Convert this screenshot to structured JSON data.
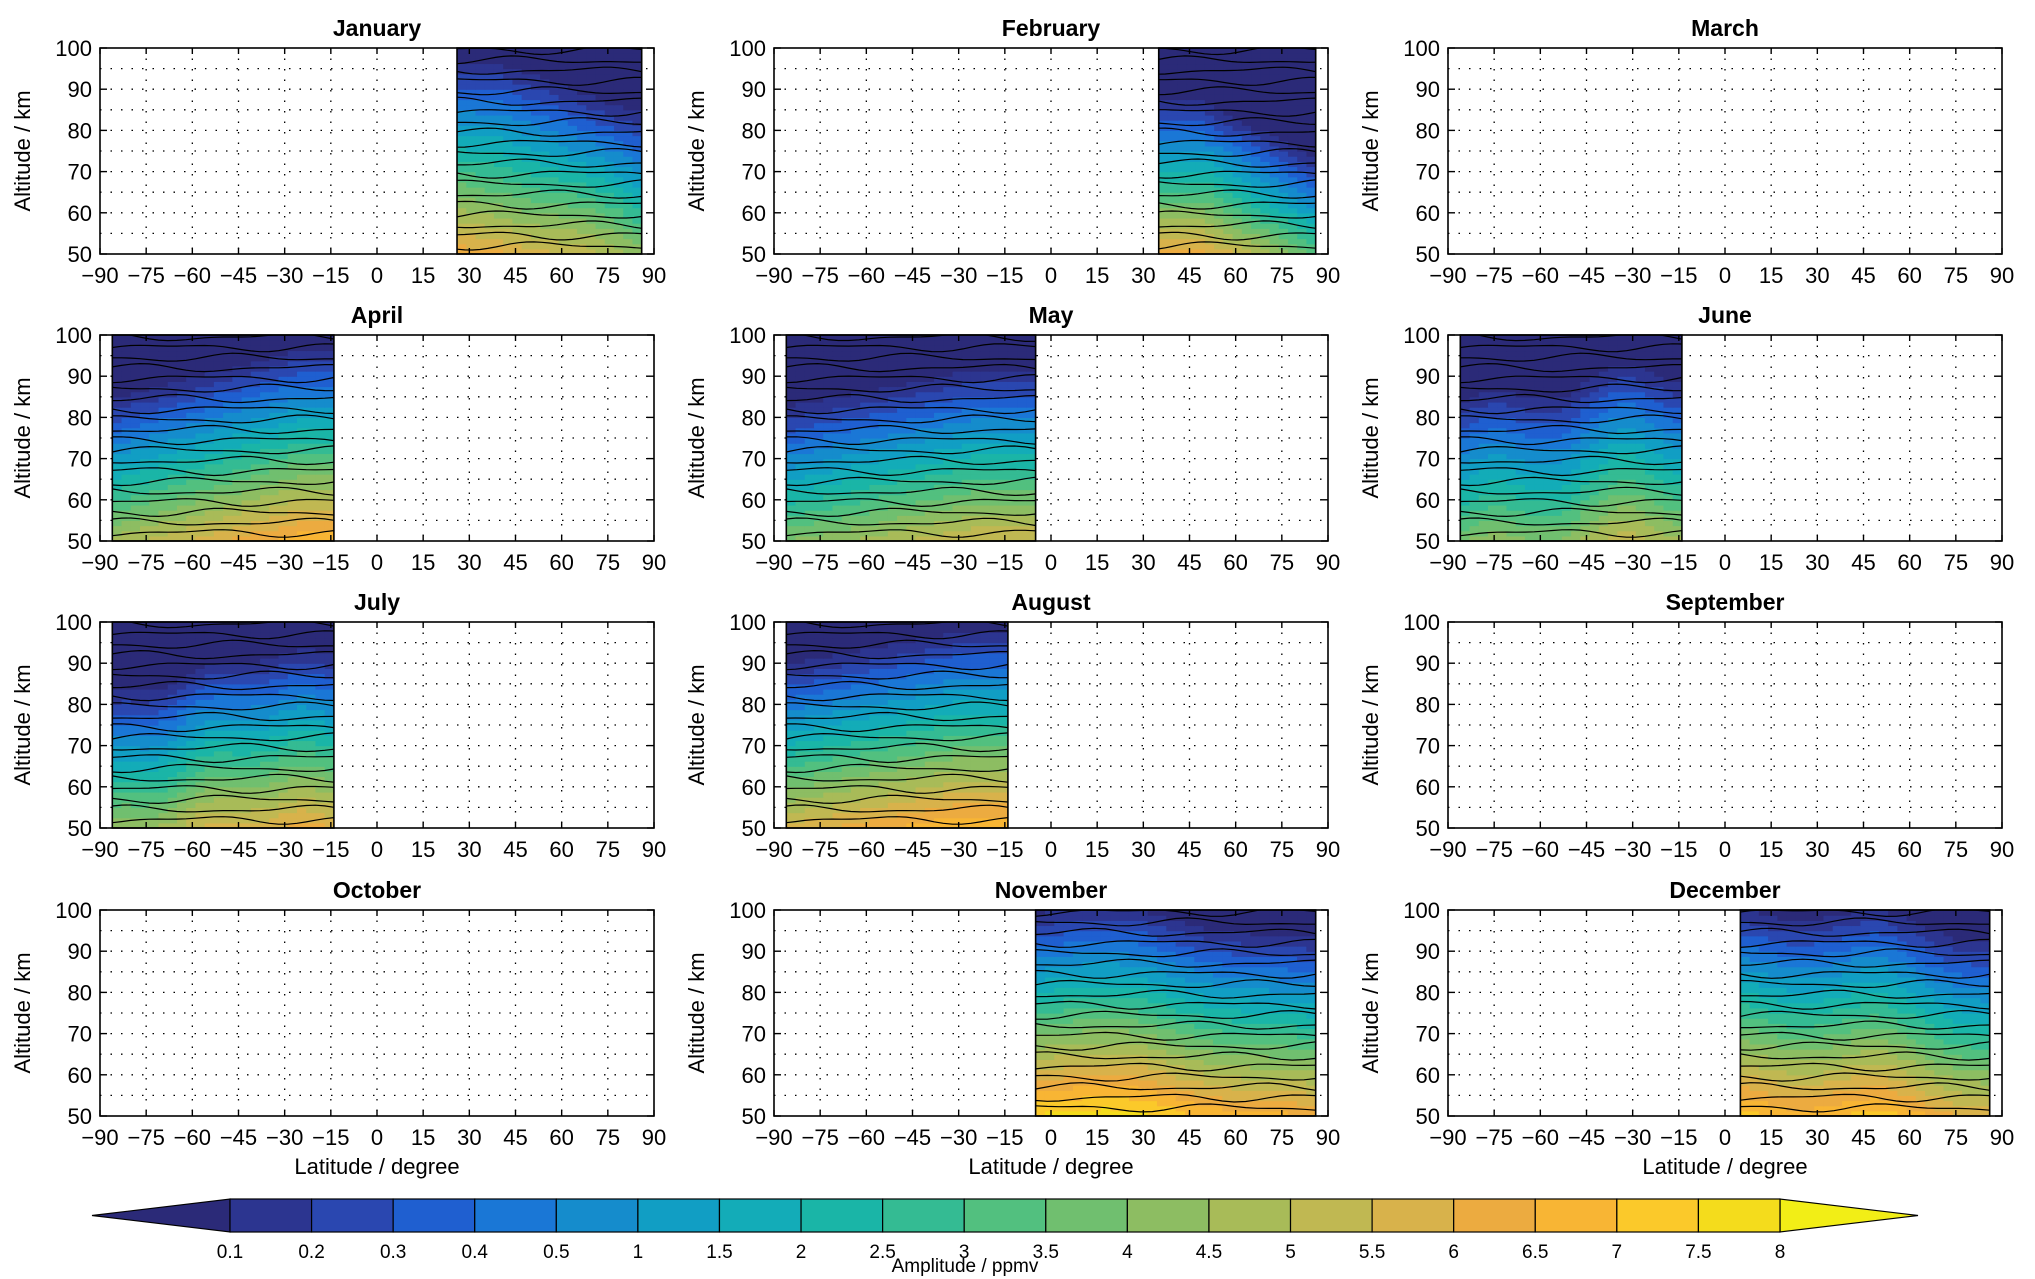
{
  "chart_data": {
    "type": "heatmap",
    "xlabel": "Latitude / degree",
    "ylabel": "Altitude / km",
    "xlim": [
      -90,
      90
    ],
    "ylim": [
      50,
      100
    ],
    "x_ticks": [
      "−90",
      "−75",
      "−60",
      "−45",
      "−30",
      "−15",
      "0",
      "15",
      "30",
      "45",
      "60",
      "75",
      "90"
    ],
    "y_ticks": [
      "50",
      "60",
      "70",
      "80",
      "90",
      "100"
    ],
    "colorbar": {
      "label": "Amplitude / ppmv",
      "levels": [
        "0.1",
        "0.2",
        "0.3",
        "0.4",
        "0.5",
        "1",
        "1.5",
        "2",
        "2.5",
        "3",
        "3.5",
        "4",
        "4.5",
        "5",
        "5.5",
        "6",
        "6.5",
        "7",
        "7.5",
        "8"
      ],
      "colors": [
        "#2b2a78",
        "#2c3590",
        "#2a47b0",
        "#1f5fd0",
        "#1a77d6",
        "#158ccc",
        "#119ec4",
        "#13acb8",
        "#1ab5a7",
        "#34bb93",
        "#52c07f",
        "#70bf6f",
        "#8dbd62",
        "#a8bb58",
        "#c0b852",
        "#d8b24b",
        "#ecab40",
        "#f8b534",
        "#fbc92a",
        "#f4dc1c",
        "#f2ee16"
      ],
      "extend": "both"
    },
    "panels": [
      {
        "title": "January",
        "lat_range": [
          26,
          86
        ]
      },
      {
        "title": "February",
        "lat_range": [
          35,
          86
        ]
      },
      {
        "title": "March",
        "lat_range": null
      },
      {
        "title": "April",
        "lat_range": [
          -86,
          -14
        ]
      },
      {
        "title": "May",
        "lat_range": [
          -86,
          -5
        ]
      },
      {
        "title": "June",
        "lat_range": [
          -86,
          -14
        ]
      },
      {
        "title": "July",
        "lat_range": [
          -86,
          -14
        ]
      },
      {
        "title": "August",
        "lat_range": [
          -86,
          -14
        ]
      },
      {
        "title": "September",
        "lat_range": null
      },
      {
        "title": "October",
        "lat_range": null
      },
      {
        "title": "November",
        "lat_range": [
          -5,
          86
        ]
      },
      {
        "title": "December",
        "lat_range": [
          5,
          86
        ]
      }
    ]
  }
}
